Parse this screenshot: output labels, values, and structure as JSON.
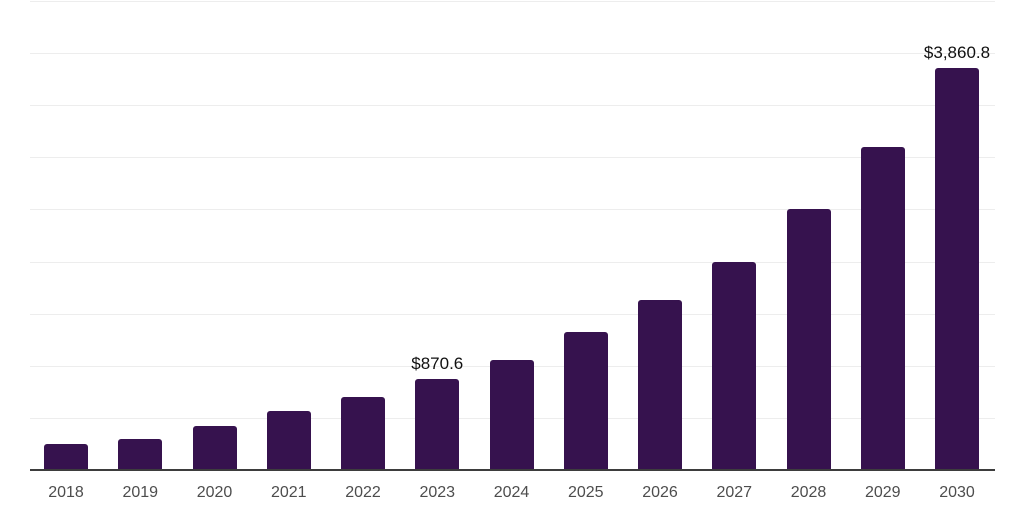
{
  "chart_data": {
    "type": "bar",
    "title": "",
    "categories": [
      "2018",
      "2019",
      "2020",
      "2021",
      "2022",
      "2023",
      "2024",
      "2025",
      "2026",
      "2027",
      "2028",
      "2029",
      "2030"
    ],
    "values": [
      250,
      300,
      420,
      565,
      700,
      870.6,
      1060,
      1320,
      1630,
      2000,
      2500,
      3100,
      3860.8
    ],
    "data_labels": [
      {
        "category": "2023",
        "text": "$870.6"
      },
      {
        "category": "2030",
        "text": "$3,860.8"
      }
    ],
    "xlabel": "",
    "ylabel": "",
    "ylim": [
      0,
      4500
    ],
    "gridline_step": 500,
    "grid": true,
    "legend": "none",
    "colors": {
      "bar": "#36124E",
      "gridline": "#ededed",
      "axis_line": "#3d3d3d",
      "tick_label": "#4d4d4d",
      "data_label": "#101010"
    }
  }
}
